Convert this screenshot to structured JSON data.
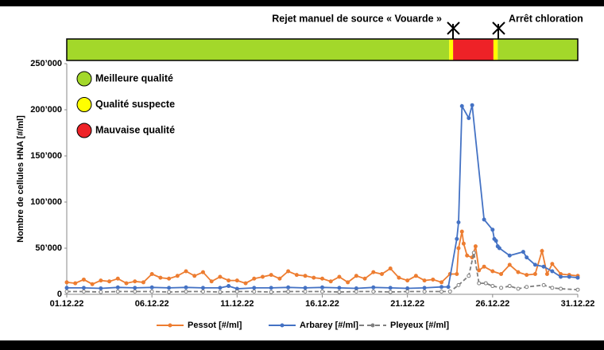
{
  "chart_data": {
    "type": "line",
    "y_label": "Nombre de cellules HNA [#/ml]",
    "xlim": [
      1,
      31
    ],
    "xticks": [
      {
        "value": 1,
        "label": "01.12.22"
      },
      {
        "value": 6,
        "label": "06.12.22"
      },
      {
        "value": 11,
        "label": "11.12.22"
      },
      {
        "value": 16,
        "label": "16.12.22"
      },
      {
        "value": 21,
        "label": "21.12.22"
      },
      {
        "value": 26,
        "label": "26.12.22"
      },
      {
        "value": 31,
        "label": "31.12.22"
      }
    ],
    "ylim": [
      0,
      250000
    ],
    "yticks": [
      0,
      {
        "value": 50000,
        "label": "50’000"
      },
      {
        "value": 100000,
        "label": "100’000"
      },
      {
        "value": 150000,
        "label": "150’000"
      },
      {
        "value": 200000,
        "label": "200’000"
      },
      {
        "value": 250000,
        "label": "250’000"
      }
    ],
    "annotations": [
      "Rejet manuel de source « Vouarde »",
      "Arrêt chloration"
    ],
    "quality_legend": [
      {
        "name": "Meilleure qualité",
        "color": "#a3d82a"
      },
      {
        "name": "Qualité suspecte",
        "color": "#ffff00"
      },
      {
        "name": "Mauvaise qualité",
        "color": "#ee2227"
      }
    ],
    "quality_band": [
      {
        "start": 1,
        "end": 23.45,
        "color": "#a3d82a"
      },
      {
        "start": 23.45,
        "end": 23.68,
        "color": "#ffff00"
      },
      {
        "start": 23.68,
        "end": 26.05,
        "color": "#ee2227"
      },
      {
        "start": 26.05,
        "end": 26.3,
        "color": "#ffff00"
      },
      {
        "start": 26.3,
        "end": 31,
        "color": "#a3d82a"
      }
    ],
    "series": [
      {
        "name": "Pessot [#/ml]",
        "color": "#ed7d31",
        "dashed": false,
        "x": [
          1,
          1.5,
          2,
          2.5,
          3,
          3.5,
          4,
          4.5,
          5,
          5.5,
          6,
          6.5,
          7,
          7.5,
          8,
          8.5,
          9,
          9.5,
          10,
          10.5,
          11,
          11.5,
          12,
          12.5,
          13,
          13.5,
          14,
          14.5,
          15,
          15.5,
          16,
          16.5,
          17,
          17.5,
          18,
          18.5,
          19,
          19.5,
          20,
          20.5,
          21,
          21.5,
          22,
          22.5,
          23,
          23.5,
          23.9,
          24,
          24.2,
          24.3,
          24.5,
          24.8,
          25,
          25.2,
          25.5,
          26,
          26.5,
          27,
          27.5,
          28,
          28.5,
          28.9,
          29.2,
          29.5,
          30,
          30.5,
          31
        ],
        "values": [
          13000,
          12000,
          16000,
          11000,
          15000,
          14000,
          17000,
          12000,
          14000,
          13000,
          22000,
          18000,
          17000,
          20000,
          25000,
          20000,
          24000,
          14000,
          19000,
          15000,
          15000,
          12000,
          17000,
          19000,
          21000,
          17000,
          25000,
          21000,
          20000,
          18000,
          17000,
          14000,
          19000,
          13000,
          20000,
          17000,
          24000,
          22000,
          28000,
          18000,
          15000,
          20000,
          15000,
          16000,
          13000,
          22000,
          22000,
          50000,
          68000,
          55000,
          42000,
          40000,
          52000,
          26000,
          30000,
          25000,
          22000,
          32000,
          24000,
          21000,
          22000,
          47000,
          22000,
          33000,
          22000,
          21000,
          20000
        ]
      },
      {
        "name": "Arbarey [#/ml]",
        "color": "#4472c4",
        "dashed": false,
        "x": [
          1,
          2,
          3,
          4,
          5,
          6,
          7,
          8,
          9,
          10,
          10.5,
          11,
          12,
          13,
          14,
          15,
          16,
          17,
          18,
          19,
          20,
          21,
          22,
          23,
          23.4,
          23.9,
          24,
          24.2,
          24.6,
          24.8,
          25.5,
          26,
          26.1,
          26.2,
          26.3,
          26.4,
          27,
          27.8,
          28,
          28.5,
          29,
          29.5,
          30,
          30.5,
          31
        ],
        "values": [
          7000,
          7000,
          6500,
          7500,
          7000,
          7500,
          7000,
          7500,
          7000,
          7000,
          9000,
          6000,
          7000,
          7000,
          7500,
          7000,
          7500,
          7000,
          6500,
          7500,
          7000,
          6500,
          7000,
          8000,
          8000,
          60000,
          78000,
          204000,
          191000,
          205000,
          81000,
          70000,
          60000,
          58000,
          52000,
          50000,
          42000,
          46000,
          40000,
          32000,
          30000,
          25000,
          19000,
          19000,
          18000
        ]
      },
      {
        "name": "Pleyeux  [#/ml]",
        "color": "#7f7f7f",
        "dashed": true,
        "x": [
          1,
          2,
          3,
          4,
          5,
          6,
          7,
          8,
          9,
          10,
          11,
          12,
          13,
          14,
          15,
          16,
          17,
          18,
          19,
          20,
          21,
          22,
          23,
          23.5,
          24,
          24.6,
          24.9,
          25.2,
          25.6,
          26,
          26.5,
          27,
          27.5,
          28,
          29,
          29.5,
          30,
          31
        ],
        "values": [
          3000,
          3000,
          2500,
          3000,
          3000,
          3000,
          2500,
          3000,
          3000,
          2500,
          3000,
          3000,
          2500,
          3000,
          3000,
          3000,
          2500,
          3000,
          3000,
          2500,
          3000,
          3000,
          3000,
          3000,
          10000,
          20000,
          45000,
          12000,
          12000,
          9000,
          7000,
          9000,
          6000,
          8000,
          10000,
          7000,
          6000,
          5000
        ]
      }
    ]
  }
}
